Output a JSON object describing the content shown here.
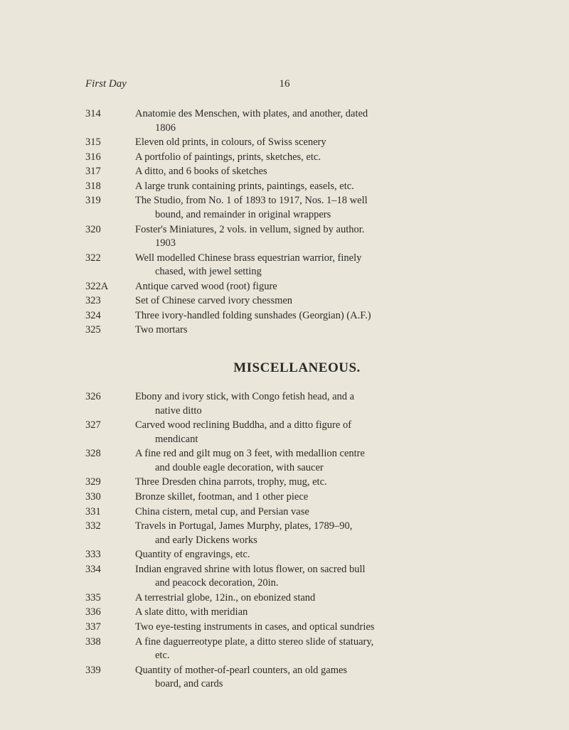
{
  "runningHead": {
    "left": "First Day",
    "pageNumber": "16"
  },
  "sectionTitle": "MISCELLANEOUS.",
  "block1": [
    {
      "lot": "314",
      "line": "Anatomie des Menschen, with plates, and another, dated",
      "cont": "1806"
    },
    {
      "lot": "315",
      "line": "Eleven old prints, in colours, of Swiss scenery"
    },
    {
      "lot": "316",
      "line": "A portfolio of paintings, prints, sketches, etc."
    },
    {
      "lot": "317",
      "line": "A ditto, and 6 books of sketches"
    },
    {
      "lot": "318",
      "line": "A large trunk containing prints, paintings, easels, etc."
    },
    {
      "lot": "319",
      "line": "The Studio, from No. 1 of 1893 to 1917, Nos. 1–18 well",
      "cont": "bound, and remainder in original wrappers"
    },
    {
      "lot": "320",
      "line": "Foster's Miniatures, 2 vols. in vellum, signed by author.",
      "cont": "1903"
    },
    {
      "lot": "322",
      "line": "Well modelled Chinese brass equestrian warrior, finely",
      "cont": "chased, with jewel setting"
    },
    {
      "lot": "322A",
      "line": "Antique carved wood (root) figure"
    },
    {
      "lot": "323",
      "line": "Set of Chinese carved ivory chessmen"
    },
    {
      "lot": "324",
      "line": "Three ivory-handled folding sunshades (Georgian) (A.F.)"
    },
    {
      "lot": "325",
      "line": "Two mortars"
    }
  ],
  "block2": [
    {
      "lot": "326",
      "line": "Ebony and ivory stick, with Congo fetish head, and a",
      "cont": "native ditto"
    },
    {
      "lot": "327",
      "line": "Carved wood reclining Buddha, and a ditto figure of",
      "cont": "mendicant"
    },
    {
      "lot": "328",
      "line": "A fine red and gilt mug on 3 feet, with medallion centre",
      "cont": "and double eagle decoration, with saucer"
    },
    {
      "lot": "329",
      "line": "Three Dresden china parrots, trophy, mug, etc."
    },
    {
      "lot": "330",
      "line": "Bronze skillet, footman, and 1 other piece"
    },
    {
      "lot": "331",
      "line": "China cistern, metal cup, and Persian vase"
    },
    {
      "lot": "332",
      "line": "Travels in Portugal, James Murphy, plates, 1789–90,",
      "cont": "and early Dickens works"
    },
    {
      "lot": "333",
      "line": "Quantity of engravings, etc."
    },
    {
      "lot": "334",
      "line": "Indian engraved shrine with lotus flower, on sacred bull",
      "cont": "and peacock decoration, 20in."
    },
    {
      "lot": "335",
      "line": "A terrestrial globe, 12in., on ebonized stand"
    },
    {
      "lot": "336",
      "line": "A slate ditto, with meridian"
    },
    {
      "lot": "337",
      "line": "Two eye-testing instruments in cases, and optical sundries"
    },
    {
      "lot": "338",
      "line": "A fine daguerreotype plate, a ditto stereo slide of statuary,",
      "cont": "etc."
    },
    {
      "lot": "339",
      "line": "Quantity of mother-of-pearl counters, an old games",
      "cont": "board, and cards"
    }
  ]
}
